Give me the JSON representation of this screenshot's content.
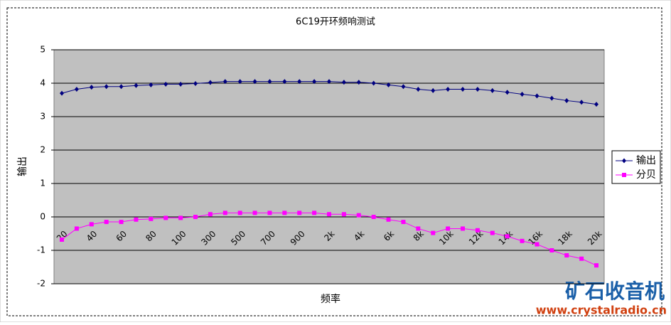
{
  "chart_data": {
    "type": "line",
    "title": "6C19开环频响测试",
    "x_label": "频率",
    "y_label": "输出",
    "categories": [
      "20",
      null,
      "40",
      null,
      "60",
      null,
      "80",
      null,
      "100",
      null,
      "300",
      null,
      "500",
      null,
      "700",
      null,
      "900",
      null,
      "2k",
      null,
      "4k",
      null,
      "6k",
      null,
      "8k",
      null,
      "10k",
      null,
      "12k",
      null,
      "14k",
      null,
      "16k",
      null,
      "18k",
      null,
      "20k"
    ],
    "series": [
      {
        "name": "输出",
        "color": "#000080",
        "values": [
          3.7,
          3.82,
          3.88,
          3.9,
          3.9,
          3.93,
          3.95,
          3.97,
          3.97,
          3.99,
          4.02,
          4.05,
          4.05,
          4.05,
          4.05,
          4.05,
          4.05,
          4.05,
          4.05,
          4.03,
          4.03,
          4.0,
          3.95,
          3.9,
          3.82,
          3.78,
          3.82,
          3.82,
          3.82,
          3.78,
          3.73,
          3.67,
          3.62,
          3.55,
          3.48,
          3.43,
          3.37
        ]
      },
      {
        "name": "分贝",
        "color": "#ff00ff",
        "values": [
          -0.68,
          -0.35,
          -0.22,
          -0.15,
          -0.15,
          -0.08,
          -0.06,
          -0.03,
          -0.03,
          0.0,
          0.08,
          0.12,
          0.12,
          0.12,
          0.12,
          0.12,
          0.12,
          0.12,
          0.08,
          0.08,
          0.05,
          0.0,
          -0.08,
          -0.15,
          -0.35,
          -0.48,
          -0.35,
          -0.35,
          -0.4,
          -0.48,
          -0.58,
          -0.72,
          -0.82,
          -1.0,
          -1.15,
          -1.25,
          -1.45
        ]
      }
    ],
    "ylim": [
      -2,
      5
    ],
    "yticks": [
      -2,
      -1,
      0,
      1,
      2,
      3,
      4,
      5
    ],
    "grid": true,
    "legend": "right"
  },
  "watermark": {
    "title": "矿石收音机",
    "url": "www.crystalradio.cn"
  }
}
